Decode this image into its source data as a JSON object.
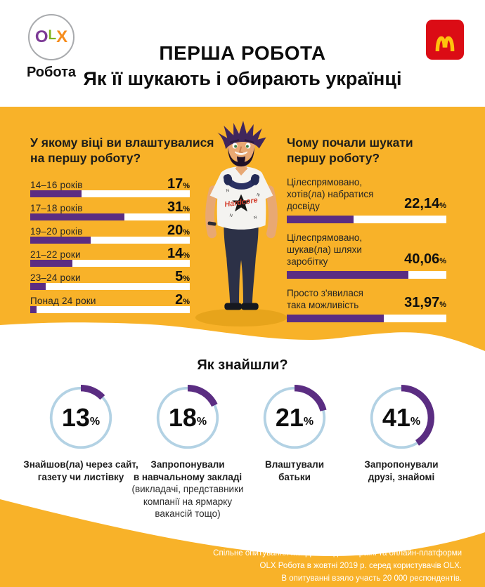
{
  "header": {
    "olx": {
      "o": "O",
      "l": "L",
      "x": "X",
      "label": "Робота"
    },
    "title_line1": "ПЕРША РОБОТА",
    "title_line2": "Як її шукають і обирають українці"
  },
  "colors": {
    "background_yellow": "#f8b229",
    "shadow_yellow": "#e7a41b",
    "bar_purple": "#5b2d82",
    "donut_ring_blue": "#b3d2e4",
    "mcdonalds_red": "#db0c15",
    "mcdonalds_arches": "#ffc20d",
    "olx_o": "#7c3a96",
    "olx_l": "#7eb41e",
    "olx_x": "#f68d1e",
    "text_dark": "#1d1d1b"
  },
  "age_chart": {
    "heading": "У якому віці ви влаштувалися\nна першу роботу?",
    "unit": "%",
    "rows": [
      {
        "label": "14–16 років",
        "value": "17",
        "pct": "17"
      },
      {
        "label": "17–18 років",
        "value": "31",
        "pct": "31"
      },
      {
        "label": "19–20 років",
        "value": "20",
        "pct": "20"
      },
      {
        "label": "21–22 роки",
        "value": "14",
        "pct": "14"
      },
      {
        "label": "23–24 роки",
        "value": "5",
        "pct": "5"
      },
      {
        "label": "Понад 24 роки",
        "value": "2",
        "pct": "2"
      }
    ]
  },
  "reason_chart": {
    "heading": "Чому почали шукати\nпершу роботу?",
    "unit": "%",
    "rows": [
      {
        "label": "Цілеспрямовано,\nхотів(ла) набратися досвіду",
        "value": "22,14",
        "pct": "22,14"
      },
      {
        "label": "Цілеспрямовано,\nшукав(ла) шляхи заробітку",
        "value": "40,06",
        "pct": "40,06"
      },
      {
        "label": "Просто з'явилася\nтака можливість",
        "value": "31,97",
        "pct": "31,97"
      }
    ]
  },
  "found_section": {
    "title": "Як знайшли?",
    "unit": "%",
    "donuts": [
      {
        "value": "13",
        "pct": "13",
        "caption": "Знайшов(ла) через сайт,\nгазету чи листівку",
        "note": ""
      },
      {
        "value": "18",
        "pct": "18",
        "caption": "Запропонували\nв навчальному закладі",
        "note": "(викладачі, представники\nкомпанії на ярмарку\nвакансій тощо)"
      },
      {
        "value": "21",
        "pct": "21",
        "caption": "Влаштували\nбатьки",
        "note": ""
      },
      {
        "value": "41",
        "pct": "41",
        "caption": "Запропонували\nдрузі, знайомі",
        "note": ""
      }
    ]
  },
  "footer": {
    "note": "Спільне опитування МакДональдз в Україні та онлайн-платформи\nOLX Робота в жовтні 2019 р. серед користувачів OLX.\nВ опитуванні взяло участь 20 000 респондентів."
  },
  "chart_data": [
    {
      "type": "bar",
      "orientation": "horizontal",
      "title": "У якому віці ви влаштувалися на першу роботу?",
      "categories": [
        "14–16 років",
        "17–18 років",
        "19–20 років",
        "21–22 роки",
        "23–24 роки",
        "Понад 24 роки"
      ],
      "values": [
        17,
        31,
        20,
        14,
        5,
        2
      ],
      "unit": "%",
      "bar_color": "#5b2d82",
      "track_color": "#ffffff",
      "xlim": [
        0,
        52
      ],
      "value_labels_shown": true
    },
    {
      "type": "bar",
      "orientation": "horizontal",
      "title": "Чому почали шукати першу роботу?",
      "categories": [
        "Цілеспрямовано, хотів(ла) набратися досвіду",
        "Цілеспрямовано, шукав(ла) шляхи заробітку",
        "Просто з'явилася така можливість"
      ],
      "values": [
        22.14,
        40.06,
        31.97
      ],
      "unit": "%",
      "bar_color": "#5b2d82",
      "track_color": "#ffffff",
      "xlim": [
        0,
        52
      ],
      "value_labels_shown": true
    },
    {
      "type": "pie",
      "variant": "donut-multiples",
      "title": "Як знайшли?",
      "categories": [
        "Знайшов(ла) через сайт, газету чи листівку",
        "Запропонували в навчальному закладі (викладачі, представники компанії на ярмарку вакансій тощо)",
        "Влаштували батьки",
        "Запропонували друзі, знайомі"
      ],
      "values": [
        13,
        18,
        21,
        41
      ],
      "unit": "%",
      "arc_color": "#5b2d82",
      "ring_color": "#b3d2e4"
    }
  ]
}
